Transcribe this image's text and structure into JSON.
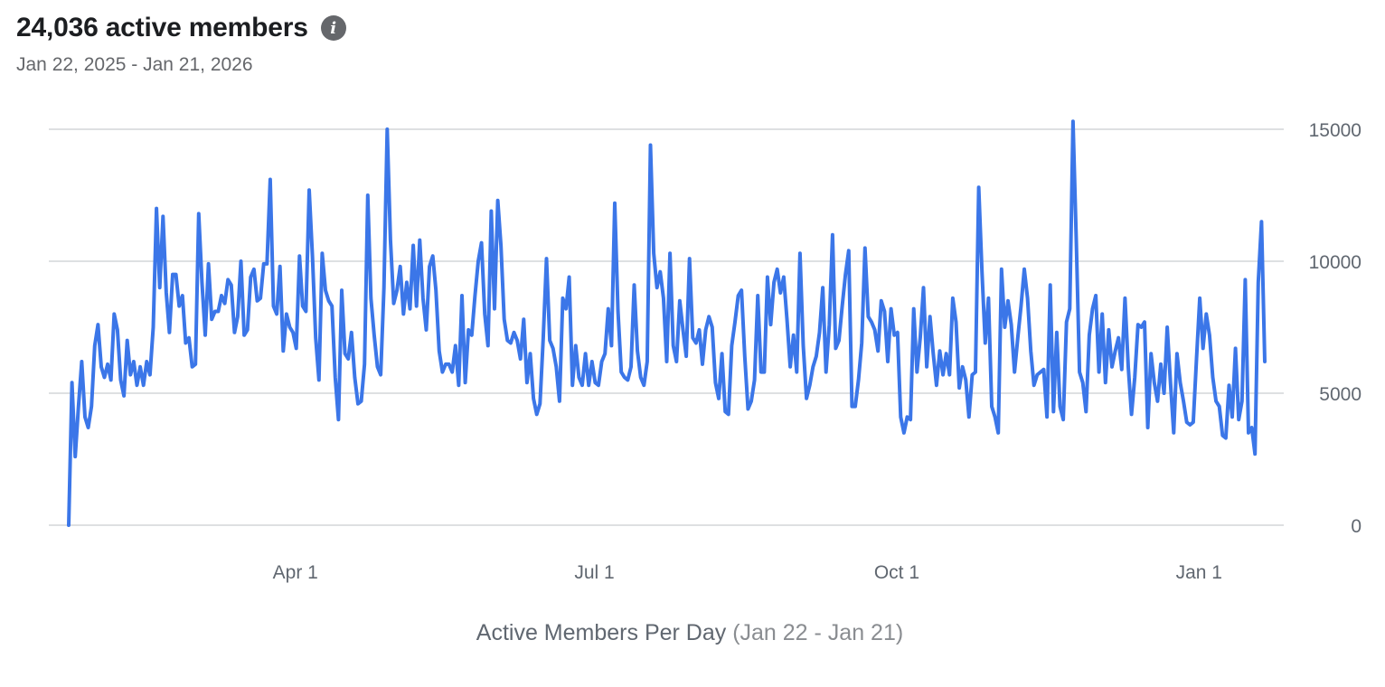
{
  "header": {
    "title": "24,036 active members",
    "date_range": "Jan 22, 2025 - Jan 21, 2026",
    "info_icon": "info-icon"
  },
  "caption": {
    "label": "Active Members Per Day",
    "range": "(Jan 22 - Jan 21)"
  },
  "colors": {
    "line": "#3b76e8",
    "grid": "#d3d5d8",
    "text": "#606770"
  },
  "chart_data": {
    "type": "line",
    "title": "",
    "xlabel": "",
    "ylabel": "",
    "ylim": [
      0,
      15000
    ],
    "y_ticks": [
      "0",
      "5000",
      "10000",
      "15000"
    ],
    "x_tick_labels": [
      {
        "date": "2025-04-01",
        "label": "Apr 1"
      },
      {
        "date": "2025-07-01",
        "label": "Jul 1"
      },
      {
        "date": "2025-10-01",
        "label": "Oct 1"
      },
      {
        "date": "2026-01-01",
        "label": "Jan 1"
      }
    ],
    "x_start": "2025-01-22",
    "x_end": "2026-01-21",
    "grid": true,
    "legend": "none",
    "series": [
      {
        "values": [
          0,
          5400,
          2600,
          4500,
          6200,
          4100,
          3700,
          4500,
          6800,
          7600,
          6000,
          5600,
          6100,
          5500,
          8000,
          7400,
          5500,
          4900,
          7000,
          5700,
          6200,
          5300,
          6000,
          5300,
          6200,
          5700,
          7500,
          12000,
          9000,
          11700,
          8800,
          7300,
          9500,
          9500,
          8300,
          8700,
          6900,
          7100,
          6000,
          6100,
          11800,
          9200,
          7200,
          9900,
          7800,
          8100,
          8100,
          8700,
          8400,
          9300,
          9100,
          7300,
          7900,
          10000,
          7200,
          7400,
          9400,
          9700,
          8500,
          8600,
          9900,
          9900,
          13100,
          8300,
          8000,
          9800,
          6600,
          8000,
          7500,
          7300,
          6700,
          10200,
          8300,
          8100,
          12700,
          10200,
          7100,
          5500,
          10300,
          8900,
          8500,
          8300,
          5600,
          4000,
          8900,
          6500,
          6300,
          7300,
          5600,
          4600,
          4700,
          6100,
          12500,
          8600,
          7200,
          6000,
          5700,
          9000,
          15000,
          10800,
          8400,
          8900,
          9800,
          8000,
          9200,
          8200,
          10600,
          8300,
          10800,
          8600,
          7400,
          9800,
          10200,
          8900,
          6600,
          5800,
          6100,
          6100,
          5800,
          6800,
          5300,
          8700,
          5400,
          7400,
          7200,
          8700,
          10000,
          10700,
          8000,
          6800,
          11900,
          8200,
          12300,
          10600,
          7800,
          7000,
          6900,
          7300,
          7000,
          6300,
          7800,
          5400,
          6500,
          4800,
          4200,
          4600,
          7100,
          10100,
          7000,
          6700,
          6000,
          4700,
          8600,
          8200,
          9400,
          5300,
          6800,
          5600,
          5300,
          6500,
          5300,
          6200,
          5400,
          5300,
          6200,
          6500,
          8200,
          6800,
          12200,
          8100,
          5800,
          5600,
          5500,
          6000,
          9100,
          6600,
          5600,
          5300,
          6200,
          14400,
          10300,
          9000,
          9600,
          8600,
          6200,
          10300,
          6800,
          6200,
          8500,
          7400,
          6400,
          10100,
          7100,
          6900,
          7400,
          6100,
          7400,
          7900,
          7500,
          5400,
          4800,
          6500,
          4300,
          4200,
          6800,
          7700,
          8700,
          8900,
          6400,
          4400,
          4700,
          5500,
          8700,
          5800,
          5800,
          9400,
          7600,
          9200,
          9700,
          8800,
          9400,
          7800,
          6000,
          7200,
          5800,
          10300,
          6800,
          4800,
          5300,
          6000,
          6400,
          7300,
          9000,
          5800,
          7600,
          11000,
          6700,
          7000,
          8300,
          9500,
          10400,
          4500,
          4500,
          5500,
          6900,
          10500,
          7900,
          7700,
          7400,
          6600,
          8500,
          8100,
          6200,
          8200,
          7200,
          7300,
          4100,
          3500,
          4100,
          4000,
          8200,
          5800,
          7100,
          9000,
          6000,
          7900,
          6500,
          5300,
          6600,
          5700,
          6500,
          5700,
          8600,
          7700,
          5200,
          6000,
          5500,
          4100,
          5700,
          5800,
          12800,
          9600,
          6900,
          8600,
          4500,
          4100,
          3500,
          9700,
          7500,
          8500,
          7600,
          5800,
          7100,
          8300,
          9700,
          8600,
          6600,
          5300,
          5700,
          5800,
          5900,
          4100,
          9100,
          4300,
          7300,
          4500,
          4000,
          7700,
          8200,
          15300,
          10800,
          5800,
          5400,
          4300,
          7200,
          8200,
          8700,
          5800,
          8000,
          5400,
          7400,
          6000,
          6600,
          7100,
          5900,
          8600,
          6000,
          4200,
          5600,
          7600,
          7500,
          7700,
          3700,
          6500,
          5400,
          4700,
          6100,
          5000,
          7500,
          5400,
          3500,
          6500,
          5400,
          4700,
          3900,
          3800,
          3900,
          6300,
          8600,
          6700,
          8000,
          7200,
          5600,
          4700,
          4500,
          3400,
          3300,
          5300,
          4100,
          6700,
          4000,
          4700,
          9300,
          3500,
          3700,
          2700,
          9200,
          11500,
          6200
        ]
      }
    ]
  }
}
